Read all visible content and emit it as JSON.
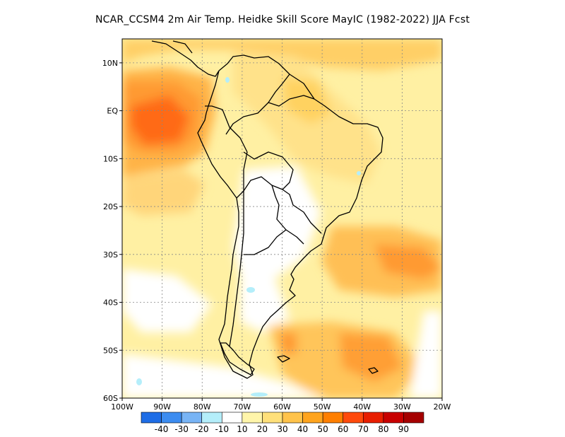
{
  "title": "NCAR_CCSM4  2m Air Temp. Heidke Skill Score MayIC (1982-2022) JJA Fcst",
  "map": {
    "lon_range": [
      -100,
      -20
    ],
    "lat_range": [
      -60,
      15
    ],
    "lat_ticks": [
      {
        "value": 10,
        "label": "10N"
      },
      {
        "value": 0,
        "label": "EQ"
      },
      {
        "value": -10,
        "label": "10S"
      },
      {
        "value": -20,
        "label": "20S"
      },
      {
        "value": -30,
        "label": "30S"
      },
      {
        "value": -40,
        "label": "40S"
      },
      {
        "value": -50,
        "label": "50S"
      },
      {
        "value": -60,
        "label": "60S"
      }
    ],
    "lon_ticks": [
      {
        "value": -100,
        "label": "100W"
      },
      {
        "value": -90,
        "label": "90W"
      },
      {
        "value": -80,
        "label": "80W"
      },
      {
        "value": -70,
        "label": "70W"
      },
      {
        "value": -60,
        "label": "60W"
      },
      {
        "value": -50,
        "label": "50W"
      },
      {
        "value": -40,
        "label": "40W"
      },
      {
        "value": -30,
        "label": "30W"
      },
      {
        "value": -20,
        "label": "20W"
      }
    ],
    "gridlines": true
  },
  "colorbar": {
    "colors": [
      "#1e6de6",
      "#3c8cf0",
      "#78b4f5",
      "#b4eefa",
      "#ffffff",
      "#fff5aa",
      "#ffe07a",
      "#ffc34b",
      "#ffa41e",
      "#ff7f00",
      "#ff4a0c",
      "#e81e00",
      "#c80000",
      "#a50000"
    ],
    "labels": [
      "-40",
      "-30",
      "-20",
      "-10",
      "10",
      "20",
      "30",
      "40",
      "50",
      "60",
      "70",
      "80",
      "90"
    ]
  }
}
